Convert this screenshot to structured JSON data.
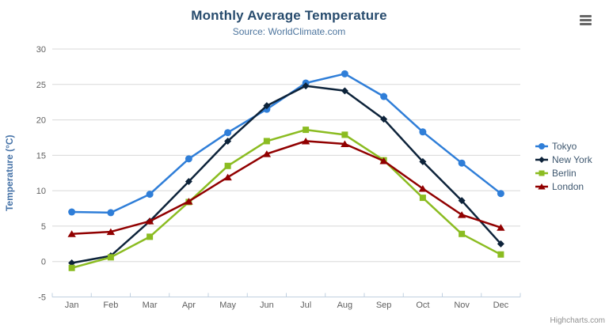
{
  "header": {
    "title": "Monthly Average Temperature",
    "subtitle": "Source: WorldClimate.com"
  },
  "credits_label": "Highcharts.com",
  "icons": {
    "menu": "hamburger-menu-icon"
  },
  "colors": {
    "title": "#274b6d",
    "subtitle": "#4d759e",
    "axis_title": "#4572a7",
    "tick_label": "#606060",
    "grid": "#d8d8d8",
    "axis_line": "#c0d0e0",
    "legend_text": "#3e576f",
    "credits": "#909090",
    "menu_icon": "#666666"
  },
  "chart_data": {
    "type": "line",
    "title": "Monthly Average Temperature",
    "subtitle": "Source: WorldClimate.com",
    "categories": [
      "Jan",
      "Feb",
      "Mar",
      "Apr",
      "May",
      "Jun",
      "Jul",
      "Aug",
      "Sep",
      "Oct",
      "Nov",
      "Dec"
    ],
    "xlabel": "",
    "ylabel": "Temperature (°C)",
    "ylim": [
      -5,
      30
    ],
    "ytick_step": 5,
    "yticks": [
      30,
      25,
      20,
      15,
      10,
      5,
      0,
      -5
    ],
    "grid": true,
    "legend_position": "right",
    "series": [
      {
        "name": "Tokyo",
        "color": "#2f7ed8",
        "marker": "circle",
        "values": [
          7.0,
          6.9,
          9.5,
          14.5,
          18.2,
          21.5,
          25.2,
          26.5,
          23.3,
          18.3,
          13.9,
          9.6
        ]
      },
      {
        "name": "New York",
        "color": "#0d233a",
        "marker": "diamond",
        "values": [
          -0.2,
          0.8,
          5.7,
          11.3,
          17.0,
          22.0,
          24.8,
          24.1,
          20.1,
          14.1,
          8.6,
          2.5
        ]
      },
      {
        "name": "Berlin",
        "color": "#8bbc21",
        "marker": "square",
        "values": [
          -0.9,
          0.6,
          3.5,
          8.4,
          13.5,
          17.0,
          18.6,
          17.9,
          14.3,
          9.0,
          3.9,
          1.0
        ]
      },
      {
        "name": "London",
        "color": "#910000",
        "marker": "triangle",
        "values": [
          3.9,
          4.2,
          5.7,
          8.5,
          11.9,
          15.2,
          17.0,
          16.6,
          14.2,
          10.3,
          6.6,
          4.8
        ]
      }
    ]
  }
}
